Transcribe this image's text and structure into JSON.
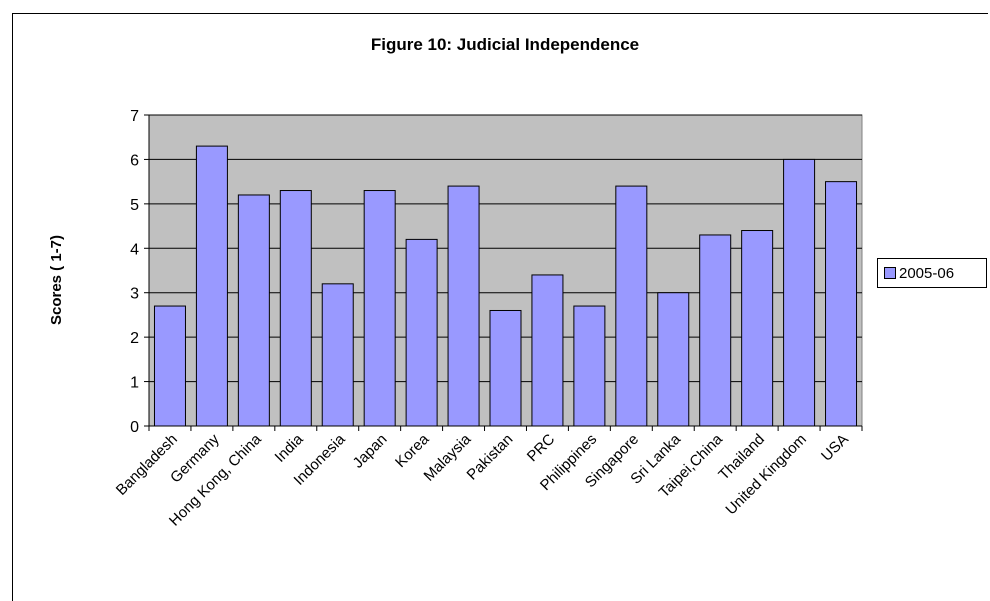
{
  "chart_data": {
    "type": "bar",
    "title": "Figure 10:  Judicial Independence",
    "xlabel": "",
    "ylabel": "Scores ( 1-7)",
    "ylim": [
      0,
      7
    ],
    "yticks": [
      0,
      1,
      2,
      3,
      4,
      5,
      6,
      7
    ],
    "grid": true,
    "legend_position": "right",
    "categories": [
      "Bangladesh",
      "Germany",
      "Hong Kong, China",
      "India",
      "Indonesia",
      "Japan",
      "Korea",
      "Malaysia",
      "Pakistan",
      "PRC",
      "Philippines",
      "Singapore",
      "Sri Lanka",
      "Taipei,China",
      "Thailand",
      "United Kingdom",
      "USA"
    ],
    "series": [
      {
        "name": "2005-06",
        "values": [
          2.7,
          6.3,
          5.2,
          5.3,
          3.2,
          5.3,
          4.2,
          5.4,
          2.6,
          3.4,
          2.7,
          5.4,
          3.0,
          4.3,
          4.4,
          6.0,
          5.5
        ]
      }
    ],
    "colors": {
      "bar": "#9999ff",
      "plot_bg": "#c0c0c0",
      "outline": "#000000"
    }
  }
}
